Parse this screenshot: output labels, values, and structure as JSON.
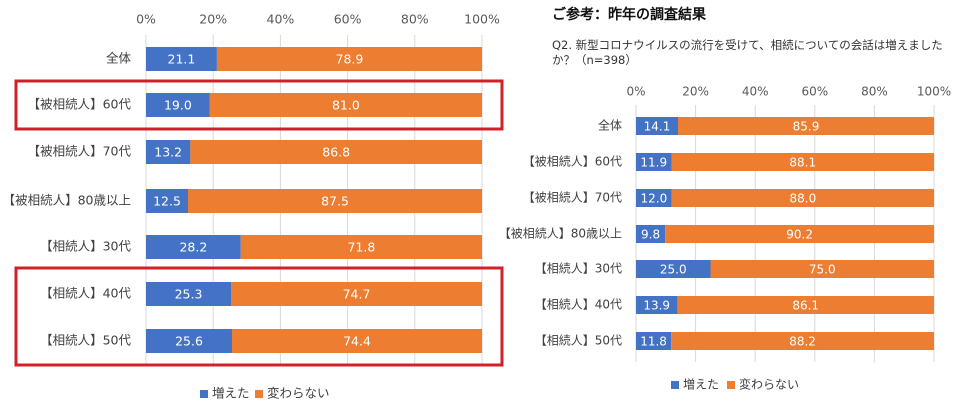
{
  "reference": {
    "title": "ご参考：昨年の調査結果",
    "question": "Q2. 新型コロナウイルスの流行を受けて、相続についての会話は増えましたか？（n=398）"
  },
  "colors": {
    "increased": "#4472c4",
    "unchanged": "#ed7d31",
    "highlight": "#d0202a",
    "grid": "#d9d9d9"
  },
  "chart_data": [
    {
      "type": "bar",
      "orientation": "horizontal",
      "stacked": true,
      "percent": true,
      "x_ticks": [
        "0%",
        "20%",
        "40%",
        "60%",
        "80%",
        "100%"
      ],
      "xlim": [
        0,
        100
      ],
      "categories": [
        "全体",
        "【被相続人】60代",
        "【被相続人】70代",
        "【被相続人】80歳以上",
        "【相続人】30代",
        "【相続人】40代",
        "【相続人】50代"
      ],
      "series": [
        {
          "name": "増えた",
          "values": [
            21.1,
            19.0,
            13.2,
            12.5,
            28.2,
            25.3,
            25.6
          ]
        },
        {
          "name": "変わらない",
          "values": [
            78.9,
            81.0,
            86.8,
            87.5,
            71.8,
            74.7,
            74.4
          ]
        }
      ],
      "legend": {
        "position": "bottom"
      },
      "highlighted_categories": [
        "【被相続人】60代",
        "【相続人】40代",
        "【相続人】50代"
      ]
    },
    {
      "type": "bar",
      "orientation": "horizontal",
      "stacked": true,
      "percent": true,
      "x_ticks": [
        "0%",
        "20%",
        "40%",
        "60%",
        "80%",
        "100%"
      ],
      "xlim": [
        0,
        100
      ],
      "categories": [
        "全体",
        "【被相続人】60代",
        "【被相続人】70代",
        "【被相続人】80歳以上",
        "【相続人】30代",
        "【相続人】40代",
        "【相続人】50代"
      ],
      "series": [
        {
          "name": "増えた",
          "values": [
            14.1,
            11.9,
            12.0,
            9.8,
            25.0,
            13.9,
            11.8
          ]
        },
        {
          "name": "変わらない",
          "values": [
            85.9,
            88.1,
            88.0,
            90.2,
            75.0,
            86.1,
            88.2
          ]
        }
      ],
      "legend": {
        "position": "bottom"
      }
    }
  ]
}
